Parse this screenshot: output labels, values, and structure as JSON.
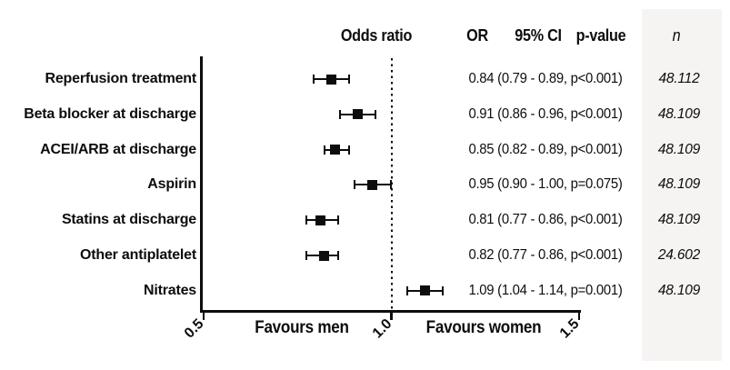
{
  "colors": {
    "ink": "#0d0d0d",
    "background": "#ffffff",
    "n_panel": "#f6f4f3"
  },
  "chart_data": {
    "type": "forest",
    "title": "Odds ratio",
    "column_headers": {
      "or": "OR",
      "ci": "95% CI",
      "pvalue": "p-value",
      "n": "n"
    },
    "axis": {
      "min": 0.5,
      "max": 1.5,
      "ticks": [
        0.5,
        1.0,
        1.5
      ],
      "tick_labels": [
        "0.5",
        "1.0",
        "1.5"
      ],
      "reference_line": 1.0,
      "left_label": "Favours men",
      "right_label": "Favours women"
    },
    "rows": [
      {
        "label": "Reperfusion treatment",
        "or": 0.84,
        "ci_low": 0.79,
        "ci_high": 0.89,
        "p": "p<0.001",
        "stats": "0.84 (0.79 - 0.89, p<0.001)",
        "n": "48.112"
      },
      {
        "label": "Beta blocker at discharge",
        "or": 0.91,
        "ci_low": 0.86,
        "ci_high": 0.96,
        "p": "p<0.001",
        "stats": "0.91 (0.86 - 0.96, p<0.001)",
        "n": "48.109"
      },
      {
        "label": "ACEI/ARB at discharge",
        "or": 0.85,
        "ci_low": 0.82,
        "ci_high": 0.89,
        "p": "p<0.001",
        "stats": "0.85 (0.82 - 0.89, p<0.001)",
        "n": "48.109"
      },
      {
        "label": "Aspirin",
        "or": 0.95,
        "ci_low": 0.9,
        "ci_high": 1.0,
        "p": "p=0.075",
        "stats": "0.95 (0.90 - 1.00, p=0.075)",
        "n": "48.109"
      },
      {
        "label": "Statins at discharge",
        "or": 0.81,
        "ci_low": 0.77,
        "ci_high": 0.86,
        "p": "p<0.001",
        "stats": "0.81 (0.77 - 0.86, p<0.001)",
        "n": "48.109"
      },
      {
        "label": "Other antiplatelet",
        "or": 0.82,
        "ci_low": 0.77,
        "ci_high": 0.86,
        "p": "p<0.001",
        "stats": "0.82 (0.77 - 0.86, p<0.001)",
        "n": "24.602"
      },
      {
        "label": "Nitrates",
        "or": 1.09,
        "ci_low": 1.04,
        "ci_high": 1.14,
        "p": "p=0.001",
        "stats": "1.09 (1.04 - 1.14, p=0.001)",
        "n": "48.109"
      }
    ]
  }
}
